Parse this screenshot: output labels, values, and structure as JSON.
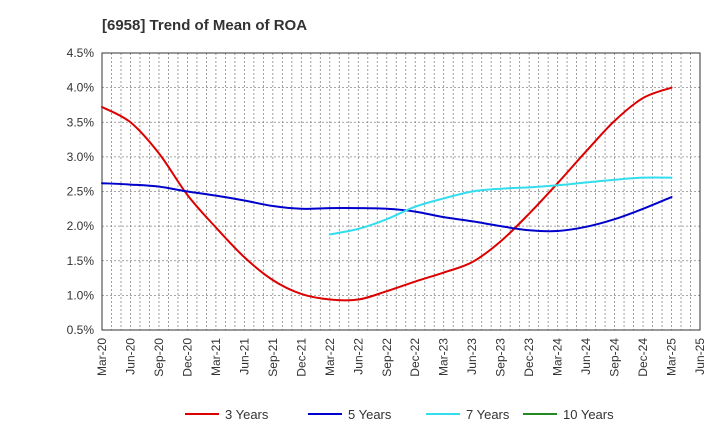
{
  "chart_data": {
    "type": "line",
    "title": "[6958]  Trend of Mean of ROA",
    "xlabel": "",
    "ylabel": "",
    "ylim": [
      0.5,
      4.5
    ],
    "yticks": [
      "0.5%",
      "1.0%",
      "1.5%",
      "2.0%",
      "2.5%",
      "3.0%",
      "3.5%",
      "4.0%",
      "4.5%"
    ],
    "x_ticks": [
      "Mar-20",
      "Jun-20",
      "Sep-20",
      "Dec-20",
      "Mar-21",
      "Jun-21",
      "Sep-21",
      "Dec-21",
      "Mar-22",
      "Jun-22",
      "Sep-22",
      "Dec-22",
      "Mar-23",
      "Jun-23",
      "Sep-23",
      "Dec-23",
      "Mar-24",
      "Jun-24",
      "Sep-24",
      "Dec-24",
      "Mar-25",
      "Jun-25"
    ],
    "grid": true,
    "legend_position": "bottom",
    "series": [
      {
        "name": "3 Years",
        "color": "#dd0000",
        "values": [
          3.72,
          3.5,
          3.05,
          2.45,
          1.98,
          1.55,
          1.22,
          1.02,
          0.94,
          0.94,
          1.06,
          1.2,
          1.33,
          1.48,
          1.78,
          2.18,
          2.62,
          3.08,
          3.52,
          3.85,
          4.0,
          null
        ]
      },
      {
        "name": "5 Years",
        "color": "#0000cc",
        "values": [
          2.62,
          2.6,
          2.57,
          2.5,
          2.44,
          2.37,
          2.29,
          2.25,
          2.26,
          2.26,
          2.25,
          2.21,
          2.13,
          2.07,
          2.0,
          1.94,
          1.93,
          1.99,
          2.1,
          2.25,
          2.42,
          null
        ]
      },
      {
        "name": "7 Years",
        "color": "#33ddee",
        "values": [
          null,
          null,
          null,
          null,
          null,
          null,
          null,
          null,
          1.88,
          1.96,
          2.1,
          2.28,
          2.4,
          2.5,
          2.54,
          2.56,
          2.59,
          2.63,
          2.67,
          2.7,
          2.7,
          null
        ]
      },
      {
        "name": "10 Years",
        "color": "#228822",
        "values": []
      }
    ]
  }
}
